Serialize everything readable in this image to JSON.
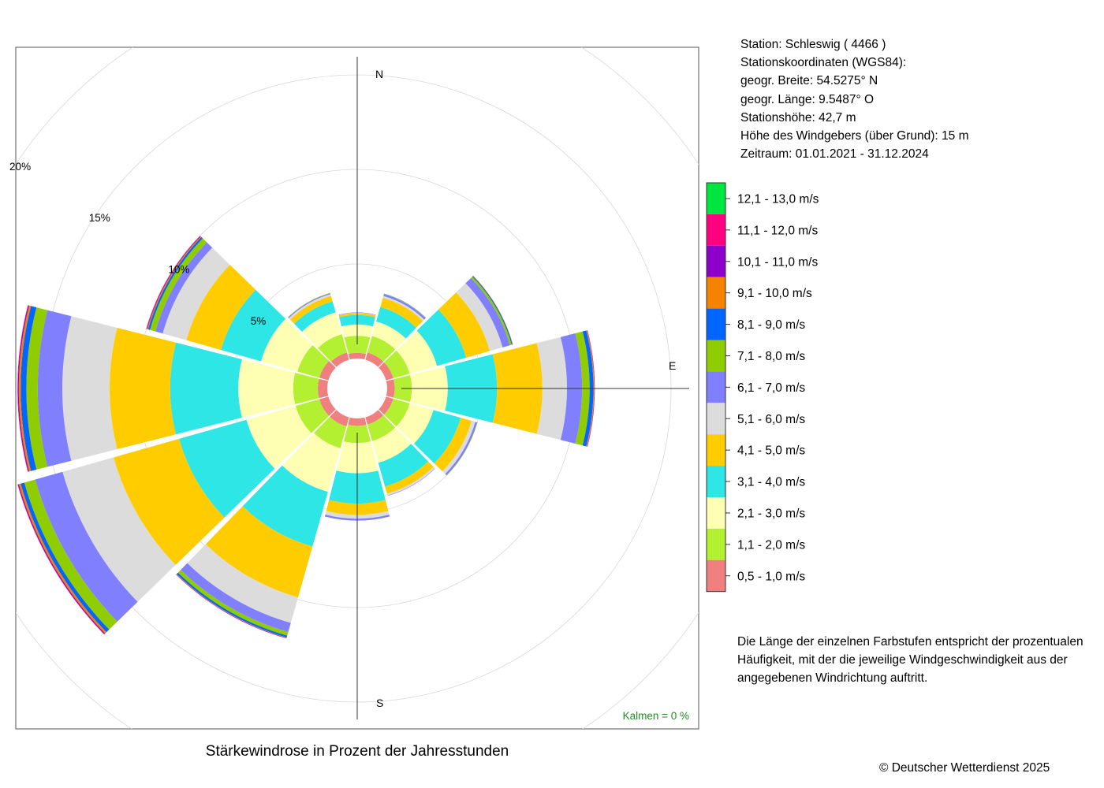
{
  "station": {
    "line1": "Station:  Schleswig  ( 4466 )",
    "line2": "Stationskoordinaten (WGS84):",
    "line3": "geogr. Breite: 54.5275° N",
    "line4": "geogr. Länge:   9.5487° O",
    "line5": "Stationshöhe: 42,7 m",
    "line6": "Höhe des Windgebers (über Grund): 15 m",
    "line7": "Zeitraum: 01.01.2021 - 31.12.2024"
  },
  "note": {
    "line1": "Die Länge der einzelnen Farbstufen entspricht der prozentualen",
    "line2": "Häufigkeit, mit der die jeweilige Windgeschwindigkeit aus der",
    "line3": "angegebenen Windrichtung auftritt."
  },
  "calm_label": "Kalmen  =  0 %",
  "copyright": "© Deutscher Wetterdienst  2025",
  "chart_data": {
    "type": "wind-rose",
    "title": "Stärkewindrose in Prozent der Jahresstunden",
    "radial_unit": "%",
    "radial_ticks": [
      5,
      10,
      15,
      20
    ],
    "radial_tick_labels": [
      "5%",
      "10%",
      "15%",
      "20%"
    ],
    "grid": true,
    "direction_labels": {
      "north": "N",
      "east": "E",
      "south": "S"
    },
    "directions_deg": [
      0,
      30,
      60,
      90,
      120,
      150,
      180,
      210,
      240,
      270,
      300,
      330
    ],
    "bins": [
      {
        "label": "0,5 - 1,0 m/s",
        "color": "#f08080"
      },
      {
        "label": "1,1 - 2,0 m/s",
        "color": "#b3f031"
      },
      {
        "label": "2,1 - 3,0 m/s",
        "color": "#feffb3"
      },
      {
        "label": "3,1 - 4,0 m/s",
        "color": "#2ee6e6"
      },
      {
        "label": "4,1 - 5,0 m/s",
        "color": "#ffcc00"
      },
      {
        "label": "5,1 - 6,0 m/s",
        "color": "#dcdcdc"
      },
      {
        "label": "6,1 - 7,0 m/s",
        "color": "#8080ff"
      },
      {
        "label": "7,1 - 8,0 m/s",
        "color": "#8fcc00"
      },
      {
        "label": "8,1 - 9,0 m/s",
        "color": "#0066ff"
      },
      {
        "label": "9,1 - 10,0 m/s",
        "color": "#f58200"
      },
      {
        "label": "10,1 - 11,0 m/s",
        "color": "#8c00cc"
      },
      {
        "label": "11,1 - 12,0 m/s",
        "color": "#ff0080"
      },
      {
        "label": "12,1 - 13,0 m/s",
        "color": "#00e640"
      }
    ],
    "frequencies": [
      [
        0.3,
        0.9,
        0.6,
        0.5,
        0.1,
        0.02,
        0.02,
        0,
        0,
        0,
        0,
        0,
        0
      ],
      [
        0.4,
        0.9,
        0.8,
        0.8,
        0.5,
        0.1,
        0.1,
        0.02,
        0.01,
        0,
        0,
        0,
        0
      ],
      [
        0.4,
        0.9,
        1.5,
        1.6,
        1.3,
        0.7,
        0.4,
        0.1,
        0.05,
        0.02,
        0,
        0,
        0
      ],
      [
        0.4,
        0.9,
        1.9,
        2.6,
        2.4,
        1.3,
        0.8,
        0.4,
        0.2,
        0.05,
        0.02,
        0,
        0
      ],
      [
        0.4,
        0.9,
        1.3,
        1.5,
        0.6,
        0.2,
        0.1,
        0.02,
        0,
        0,
        0,
        0,
        0
      ],
      [
        0.4,
        0.9,
        1.2,
        1.3,
        0.4,
        0.1,
        0.02,
        0,
        0,
        0,
        0,
        0,
        0
      ],
      [
        0.4,
        0.9,
        1.6,
        1.6,
        0.6,
        0.2,
        0.1,
        0,
        0,
        0,
        0,
        0,
        0
      ],
      [
        0.5,
        1.2,
        2.4,
        3.0,
        2.8,
        1.4,
        0.5,
        0.2,
        0.1,
        0.03,
        0.02,
        0,
        0
      ],
      [
        0.5,
        1.3,
        2.7,
        3.7,
        3.6,
        2.8,
        1.5,
        0.6,
        0.2,
        0.1,
        0.05,
        0.02,
        0
      ],
      [
        0.5,
        1.3,
        2.9,
        3.6,
        3.2,
        2.5,
        1.3,
        0.6,
        0.3,
        0.1,
        0.05,
        0.02,
        0
      ],
      [
        0.5,
        1.2,
        2.0,
        2.2,
        1.9,
        1.3,
        0.4,
        0.3,
        0.1,
        0.05,
        0.03,
        0.02,
        0
      ],
      [
        0.4,
        1.0,
        1.2,
        0.6,
        0.3,
        0.1,
        0.05,
        0.02,
        0,
        0,
        0,
        0,
        0
      ]
    ]
  }
}
